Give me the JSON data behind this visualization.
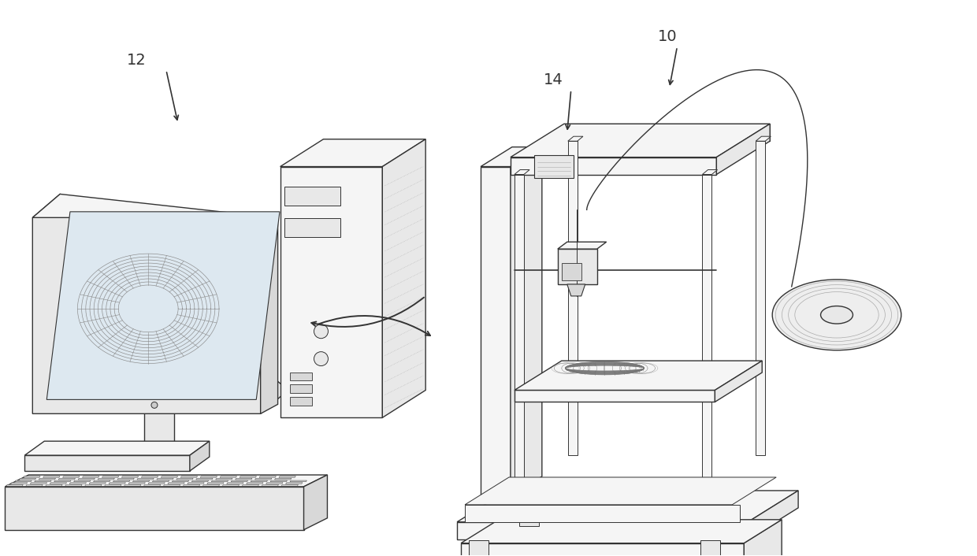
{
  "background_color": "#ffffff",
  "line_color": "#333333",
  "fill_light": "#f5f5f5",
  "fill_medium": "#e8e8e8",
  "fill_dark": "#d8d8d8",
  "fill_screen": "#e0e0e0",
  "fig_width": 12.4,
  "fig_height": 7.06,
  "dpi": 100,
  "label_10": "10",
  "label_12": "12",
  "label_14": "14"
}
